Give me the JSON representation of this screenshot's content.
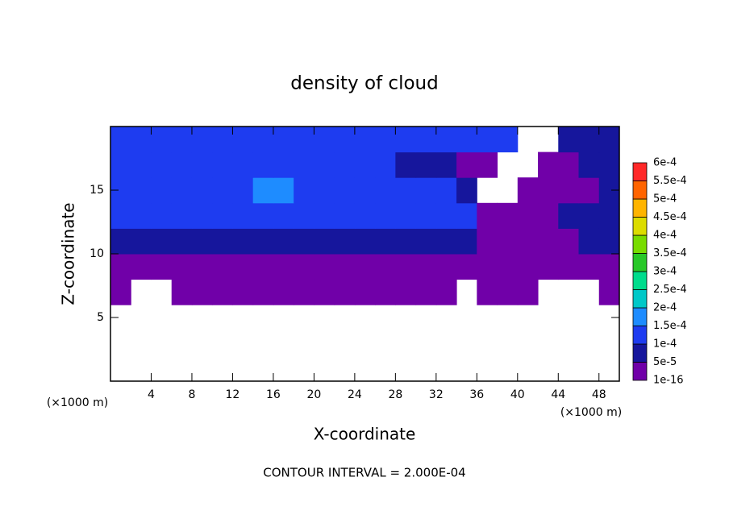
{
  "chart_data": {
    "type": "contour",
    "title": "density of cloud",
    "xlabel": "X-coordinate",
    "ylabel": "Z-coordinate",
    "x_unit": "(×1000 m)",
    "y_unit": "(×1000 m)",
    "annotation": "CONTOUR INTERVAL = 2.000E-04",
    "xlim": [
      0,
      50
    ],
    "ylim": [
      0,
      20
    ],
    "xticks": [
      4,
      8,
      12,
      16,
      20,
      24,
      28,
      32,
      36,
      40,
      44,
      48
    ],
    "yticks": [
      5,
      10,
      15
    ],
    "x": [
      1,
      3,
      5,
      7,
      9,
      11,
      13,
      15,
      17,
      19,
      21,
      23,
      25,
      27,
      29,
      31,
      33,
      35,
      37,
      39,
      41,
      43,
      45,
      47,
      49
    ],
    "y": [
      1,
      3,
      5,
      7,
      9,
      11,
      13,
      15,
      17,
      19
    ],
    "values": [
      [
        null,
        null,
        null,
        null,
        null,
        null,
        null,
        null,
        null,
        null,
        null,
        null,
        null,
        null,
        null,
        null,
        null,
        null,
        null,
        null,
        null,
        null,
        null,
        null,
        null
      ],
      [
        null,
        null,
        null,
        null,
        null,
        null,
        null,
        null,
        null,
        null,
        null,
        null,
        null,
        null,
        null,
        null,
        null,
        null,
        null,
        null,
        null,
        null,
        null,
        null,
        null
      ],
      [
        null,
        null,
        null,
        null,
        null,
        null,
        null,
        null,
        null,
        null,
        null,
        null,
        null,
        null,
        null,
        null,
        null,
        null,
        null,
        null,
        null,
        null,
        null,
        null,
        null
      ],
      [
        2.5e-05,
        null,
        null,
        2.5e-05,
        2.5e-05,
        2.5e-05,
        2.5e-05,
        2.5e-05,
        2.5e-05,
        2.5e-05,
        2.5e-05,
        2.5e-05,
        2.5e-05,
        2.5e-05,
        2.5e-05,
        2.5e-05,
        2.5e-05,
        null,
        2.5e-05,
        2.5e-05,
        2.5e-05,
        null,
        null,
        null,
        2.5e-05
      ],
      [
        2.5e-05,
        2.5e-05,
        2.5e-05,
        2.5e-05,
        2.5e-05,
        2.5e-05,
        2.5e-05,
        2.5e-05,
        2.5e-05,
        2.5e-05,
        2.5e-05,
        2.5e-05,
        2.5e-05,
        2.5e-05,
        2.5e-05,
        2.5e-05,
        2.5e-05,
        2.5e-05,
        2.5e-05,
        2.5e-05,
        2.5e-05,
        2.5e-05,
        2.5e-05,
        2.5e-05,
        2.5e-05
      ],
      [
        7.5e-05,
        7.5e-05,
        7.5e-05,
        7.5e-05,
        7.5e-05,
        7.5e-05,
        7.5e-05,
        7.5e-05,
        7.5e-05,
        7.5e-05,
        7.5e-05,
        7.5e-05,
        7.5e-05,
        7.5e-05,
        7.5e-05,
        7.5e-05,
        7.5e-05,
        7.5e-05,
        2.5e-05,
        2.5e-05,
        2.5e-05,
        2.5e-05,
        2.5e-05,
        7.5e-05,
        7.5e-05
      ],
      [
        0.000125,
        0.000125,
        0.000125,
        0.000125,
        0.000125,
        0.000125,
        0.000125,
        0.000125,
        0.000125,
        0.000125,
        0.000125,
        0.000125,
        0.000125,
        0.000125,
        0.000125,
        0.000125,
        0.000125,
        0.000125,
        2.5e-05,
        2.5e-05,
        2.5e-05,
        2.5e-05,
        7.5e-05,
        7.5e-05,
        7.5e-05
      ],
      [
        0.000125,
        0.000125,
        0.000125,
        0.000125,
        0.000125,
        0.000125,
        0.000125,
        0.000175,
        0.000175,
        0.000125,
        0.000125,
        0.000125,
        0.000125,
        0.000125,
        0.000125,
        0.000125,
        0.000125,
        7.5e-05,
        null,
        null,
        2.5e-05,
        2.5e-05,
        2.5e-05,
        2.5e-05,
        7.5e-05
      ],
      [
        0.000125,
        0.000125,
        0.000125,
        0.000125,
        0.000125,
        0.000125,
        0.000125,
        0.000125,
        0.000125,
        0.000125,
        0.000125,
        0.000125,
        0.000125,
        0.000125,
        7.5e-05,
        7.5e-05,
        7.5e-05,
        2.5e-05,
        2.5e-05,
        null,
        null,
        2.5e-05,
        2.5e-05,
        7.5e-05,
        7.5e-05
      ],
      [
        0.000125,
        0.000125,
        0.000125,
        0.000125,
        0.000125,
        0.000125,
        0.000125,
        0.000125,
        0.000125,
        0.000125,
        0.000125,
        0.000125,
        0.000125,
        0.000125,
        0.000125,
        0.000125,
        0.000125,
        0.000125,
        0.000125,
        0.000125,
        null,
        null,
        7.5e-05,
        7.5e-05,
        7.5e-05
      ]
    ],
    "colorbar": {
      "ticks": [
        {
          "value": 1e-16,
          "label": "1e-16"
        },
        {
          "value": 5e-05,
          "label": "5e-5"
        },
        {
          "value": 0.0001,
          "label": "1e-4"
        },
        {
          "value": 0.00015,
          "label": "1.5e-4"
        },
        {
          "value": 0.0002,
          "label": "2e-4"
        },
        {
          "value": 0.00025,
          "label": "2.5e-4"
        },
        {
          "value": 0.0003,
          "label": "3e-4"
        },
        {
          "value": 0.00035,
          "label": "3.5e-4"
        },
        {
          "value": 0.0004,
          "label": "4e-4"
        },
        {
          "value": 0.00045,
          "label": "4.5e-4"
        },
        {
          "value": 0.0005,
          "label": "5e-4"
        },
        {
          "value": 0.00055,
          "label": "5.5e-4"
        },
        {
          "value": 0.0006,
          "label": "6e-4"
        }
      ],
      "colors": [
        "#7000a8",
        "#16169c",
        "#1e3cf0",
        "#1e8cff",
        "#00c8c8",
        "#00dc8c",
        "#28c828",
        "#78dc00",
        "#dcdc00",
        "#ffb400",
        "#ff6400",
        "#ff2828"
      ]
    }
  }
}
